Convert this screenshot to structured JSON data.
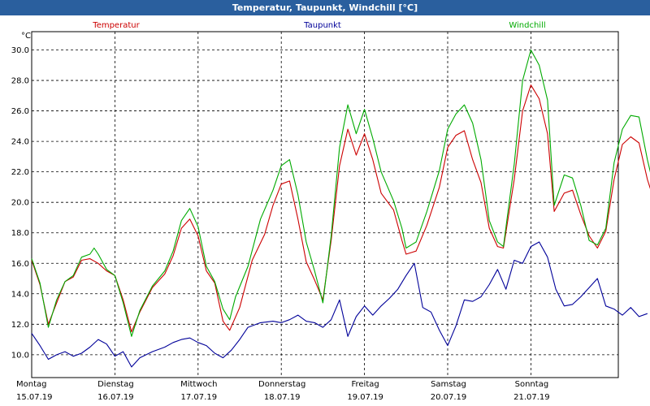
{
  "window": {
    "title": "Temperatur, Taupunkt, Windchill [°C]"
  },
  "chart_data": {
    "type": "line",
    "title": "Temperatur, Taupunkt, Windchill [°C]",
    "ylabel": "°C",
    "ylim": [
      8.5,
      31.2
    ],
    "yticks": [
      10.0,
      12.0,
      14.0,
      16.0,
      18.0,
      20.0,
      22.0,
      24.0,
      26.0,
      28.0,
      30.0
    ],
    "xlim": [
      0,
      7.2
    ],
    "days": [
      {
        "name": "Montag",
        "date": "15.07.19",
        "x": 0
      },
      {
        "name": "Dienstag",
        "date": "16.07.19",
        "x": 1
      },
      {
        "name": "Mittwoch",
        "date": "17.07.19",
        "x": 2
      },
      {
        "name": "Donnerstag",
        "date": "18.07.19",
        "x": 3
      },
      {
        "name": "Freitag",
        "date": "19.07.19",
        "x": 4
      },
      {
        "name": "Samstag",
        "date": "20.07.19",
        "x": 5
      },
      {
        "name": "Sonntag",
        "date": "21.07.19",
        "x": 6
      }
    ],
    "grid": true,
    "series": [
      {
        "name": "Temperatur",
        "color": "#cc0000",
        "points": [
          [
            0,
            16.2
          ],
          [
            0.1,
            14.6
          ],
          [
            0.2,
            12.0
          ],
          [
            0.3,
            13.4
          ],
          [
            0.4,
            14.8
          ],
          [
            0.5,
            15.1
          ],
          [
            0.6,
            16.2
          ],
          [
            0.7,
            16.3
          ],
          [
            0.8,
            16.0
          ],
          [
            0.9,
            15.5
          ],
          [
            1.0,
            15.2
          ],
          [
            1.1,
            13.6
          ],
          [
            1.2,
            11.5
          ],
          [
            1.3,
            12.8
          ],
          [
            1.45,
            14.4
          ],
          [
            1.6,
            15.3
          ],
          [
            1.7,
            16.5
          ],
          [
            1.8,
            18.3
          ],
          [
            1.9,
            18.9
          ],
          [
            2.0,
            17.8
          ],
          [
            2.1,
            15.5
          ],
          [
            2.2,
            14.7
          ],
          [
            2.3,
            12.2
          ],
          [
            2.38,
            11.6
          ],
          [
            2.5,
            13.1
          ],
          [
            2.65,
            16.2
          ],
          [
            2.8,
            17.9
          ],
          [
            2.9,
            19.8
          ],
          [
            3.0,
            21.2
          ],
          [
            3.1,
            21.4
          ],
          [
            3.2,
            18.9
          ],
          [
            3.3,
            16.1
          ],
          [
            3.4,
            14.9
          ],
          [
            3.5,
            13.6
          ],
          [
            3.6,
            17.5
          ],
          [
            3.7,
            22.4
          ],
          [
            3.8,
            24.8
          ],
          [
            3.9,
            23.1
          ],
          [
            4.0,
            24.5
          ],
          [
            4.1,
            22.8
          ],
          [
            4.2,
            20.6
          ],
          [
            4.35,
            19.5
          ],
          [
            4.45,
            17.5
          ],
          [
            4.5,
            16.6
          ],
          [
            4.62,
            16.8
          ],
          [
            4.75,
            18.5
          ],
          [
            4.9,
            21.0
          ],
          [
            5.0,
            23.6
          ],
          [
            5.1,
            24.4
          ],
          [
            5.2,
            24.7
          ],
          [
            5.3,
            22.8
          ],
          [
            5.4,
            21.3
          ],
          [
            5.5,
            18.3
          ],
          [
            5.6,
            17.1
          ],
          [
            5.67,
            17.0
          ],
          [
            5.8,
            21.5
          ],
          [
            5.9,
            26.0
          ],
          [
            6.0,
            27.7
          ],
          [
            6.1,
            26.8
          ],
          [
            6.2,
            24.5
          ],
          [
            6.28,
            19.4
          ],
          [
            6.4,
            20.6
          ],
          [
            6.5,
            20.8
          ],
          [
            6.6,
            19.2
          ],
          [
            6.7,
            17.8
          ],
          [
            6.8,
            17.0
          ],
          [
            6.9,
            18.1
          ],
          [
            7.0,
            21.5
          ],
          [
            7.1,
            23.8
          ],
          [
            7.2,
            24.3
          ],
          [
            7.3,
            23.9
          ],
          [
            7.4,
            21.5
          ],
          [
            7.5,
            19.8
          ]
        ]
      },
      {
        "name": "Taupunkt",
        "color": "#000099",
        "points": [
          [
            0,
            11.4
          ],
          [
            0.1,
            10.6
          ],
          [
            0.2,
            9.7
          ],
          [
            0.3,
            10.0
          ],
          [
            0.4,
            10.2
          ],
          [
            0.5,
            9.9
          ],
          [
            0.6,
            10.1
          ],
          [
            0.7,
            10.5
          ],
          [
            0.8,
            11.0
          ],
          [
            0.9,
            10.7
          ],
          [
            1.0,
            9.9
          ],
          [
            1.1,
            10.2
          ],
          [
            1.2,
            9.2
          ],
          [
            1.3,
            9.8
          ],
          [
            1.45,
            10.2
          ],
          [
            1.6,
            10.5
          ],
          [
            1.7,
            10.8
          ],
          [
            1.8,
            11.0
          ],
          [
            1.9,
            11.1
          ],
          [
            2.0,
            10.8
          ],
          [
            2.1,
            10.6
          ],
          [
            2.2,
            10.1
          ],
          [
            2.3,
            9.8
          ],
          [
            2.4,
            10.3
          ],
          [
            2.5,
            11.0
          ],
          [
            2.6,
            11.8
          ],
          [
            2.75,
            12.1
          ],
          [
            2.9,
            12.2
          ],
          [
            3.0,
            12.1
          ],
          [
            3.1,
            12.3
          ],
          [
            3.2,
            12.6
          ],
          [
            3.3,
            12.2
          ],
          [
            3.4,
            12.1
          ],
          [
            3.5,
            11.8
          ],
          [
            3.6,
            12.3
          ],
          [
            3.7,
            13.6
          ],
          [
            3.8,
            11.2
          ],
          [
            3.9,
            12.5
          ],
          [
            4.0,
            13.2
          ],
          [
            4.1,
            12.6
          ],
          [
            4.2,
            13.2
          ],
          [
            4.3,
            13.7
          ],
          [
            4.4,
            14.3
          ],
          [
            4.5,
            15.2
          ],
          [
            4.6,
            16.0
          ],
          [
            4.7,
            13.1
          ],
          [
            4.8,
            12.8
          ],
          [
            4.9,
            11.6
          ],
          [
            5.0,
            10.6
          ],
          [
            5.1,
            11.9
          ],
          [
            5.2,
            13.6
          ],
          [
            5.3,
            13.5
          ],
          [
            5.4,
            13.8
          ],
          [
            5.5,
            14.6
          ],
          [
            5.6,
            15.6
          ],
          [
            5.7,
            14.3
          ],
          [
            5.8,
            16.2
          ],
          [
            5.9,
            16.0
          ],
          [
            6.0,
            17.1
          ],
          [
            6.1,
            17.4
          ],
          [
            6.2,
            16.4
          ],
          [
            6.3,
            14.3
          ],
          [
            6.4,
            13.2
          ],
          [
            6.5,
            13.3
          ],
          [
            6.6,
            13.8
          ],
          [
            6.7,
            14.4
          ],
          [
            6.8,
            15.0
          ],
          [
            6.9,
            13.2
          ],
          [
            7.0,
            13.0
          ],
          [
            7.1,
            12.6
          ],
          [
            7.2,
            13.1
          ],
          [
            7.3,
            12.5
          ],
          [
            7.4,
            12.7
          ]
        ]
      },
      {
        "name": "Windchill",
        "color": "#00aa00",
        "points": [
          [
            0,
            16.3
          ],
          [
            0.1,
            14.7
          ],
          [
            0.2,
            11.8
          ],
          [
            0.3,
            13.6
          ],
          [
            0.4,
            14.8
          ],
          [
            0.5,
            15.2
          ],
          [
            0.6,
            16.4
          ],
          [
            0.7,
            16.6
          ],
          [
            0.75,
            17.0
          ],
          [
            0.8,
            16.6
          ],
          [
            0.9,
            15.6
          ],
          [
            1.0,
            15.2
          ],
          [
            1.1,
            13.4
          ],
          [
            1.2,
            11.2
          ],
          [
            1.3,
            12.9
          ],
          [
            1.45,
            14.5
          ],
          [
            1.6,
            15.5
          ],
          [
            1.7,
            16.8
          ],
          [
            1.8,
            18.8
          ],
          [
            1.9,
            19.6
          ],
          [
            2.0,
            18.4
          ],
          [
            2.1,
            15.8
          ],
          [
            2.2,
            14.8
          ],
          [
            2.3,
            13.0
          ],
          [
            2.38,
            12.3
          ],
          [
            2.45,
            13.8
          ],
          [
            2.6,
            15.8
          ],
          [
            2.75,
            18.9
          ],
          [
            2.9,
            20.8
          ],
          [
            3.0,
            22.4
          ],
          [
            3.1,
            22.8
          ],
          [
            3.2,
            20.5
          ],
          [
            3.3,
            17.4
          ],
          [
            3.4,
            15.5
          ],
          [
            3.5,
            13.4
          ],
          [
            3.6,
            17.8
          ],
          [
            3.7,
            23.6
          ],
          [
            3.8,
            26.4
          ],
          [
            3.9,
            24.5
          ],
          [
            4.0,
            26.1
          ],
          [
            4.1,
            24.2
          ],
          [
            4.2,
            22.0
          ],
          [
            4.35,
            20.1
          ],
          [
            4.45,
            18.3
          ],
          [
            4.5,
            17.0
          ],
          [
            4.62,
            17.4
          ],
          [
            4.75,
            19.4
          ],
          [
            4.9,
            22.1
          ],
          [
            5.0,
            24.8
          ],
          [
            5.1,
            25.8
          ],
          [
            5.2,
            26.4
          ],
          [
            5.3,
            25.2
          ],
          [
            5.4,
            22.8
          ],
          [
            5.5,
            18.8
          ],
          [
            5.6,
            17.4
          ],
          [
            5.67,
            17.1
          ],
          [
            5.8,
            22.5
          ],
          [
            5.9,
            28.0
          ],
          [
            6.0,
            30.0
          ],
          [
            6.1,
            29.0
          ],
          [
            6.2,
            26.7
          ],
          [
            6.28,
            19.8
          ],
          [
            6.4,
            21.8
          ],
          [
            6.5,
            21.6
          ],
          [
            6.6,
            19.8
          ],
          [
            6.7,
            17.5
          ],
          [
            6.8,
            17.2
          ],
          [
            6.9,
            18.3
          ],
          [
            7.0,
            22.6
          ],
          [
            7.1,
            24.8
          ],
          [
            7.2,
            25.7
          ],
          [
            7.3,
            25.6
          ],
          [
            7.4,
            22.8
          ],
          [
            7.5,
            20.5
          ]
        ]
      }
    ]
  }
}
